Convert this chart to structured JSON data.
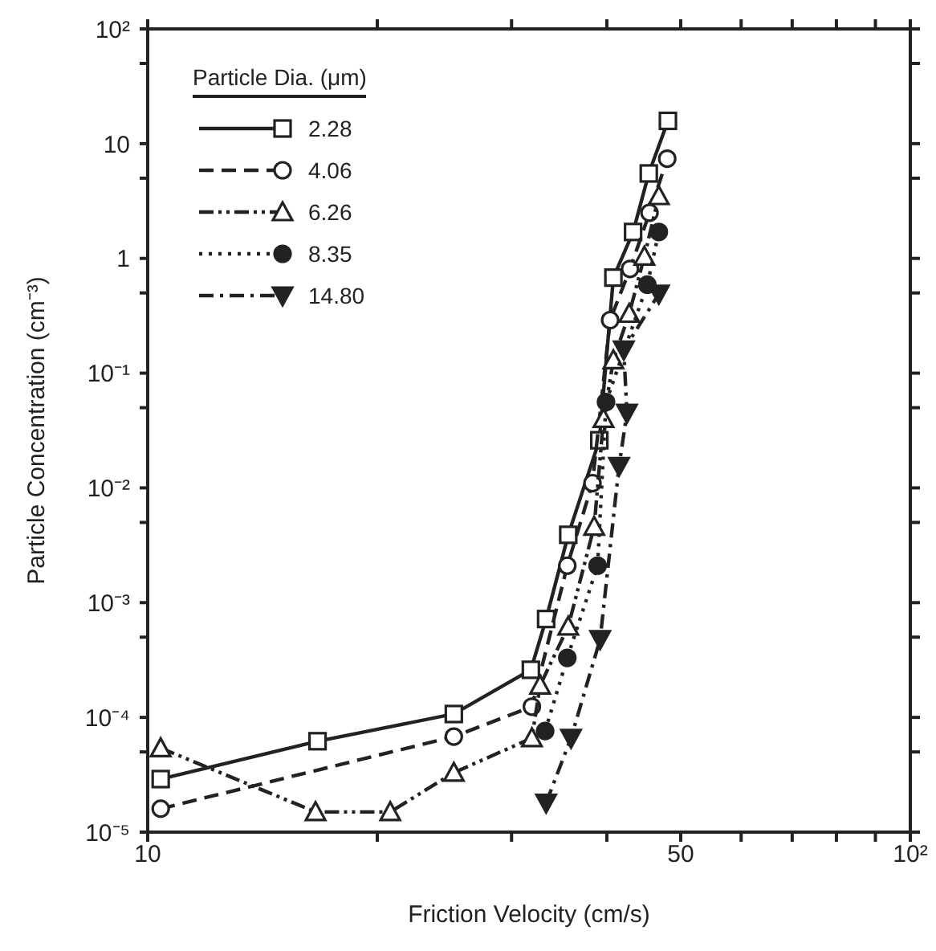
{
  "chart_data": {
    "type": "line",
    "xlabel": "Friction Velocity (cm/s)",
    "ylabel": "Particle Concentration (cm⁻³)",
    "legend_title": "Particle Dia. (μm)",
    "log": "xy",
    "legend": "top left",
    "xlim": [
      10,
      100
    ],
    "xticks": [
      10,
      {
        "value": 20,
        "label": null
      },
      {
        "value": 30,
        "label": null
      },
      {
        "value": 40,
        "label": null
      },
      50,
      {
        "value": 60,
        "label": null
      },
      {
        "value": 70,
        "label": null
      },
      {
        "value": 80,
        "label": null
      },
      {
        "value": 90,
        "label": null
      },
      {
        "value": 100,
        "label": "10²"
      }
    ],
    "ylim": [
      1e-05,
      100
    ],
    "yticks": [
      {
        "value": 1e-05,
        "label": "10⁻⁵"
      },
      {
        "value": 5e-05,
        "label": null
      },
      {
        "value": 0.0001,
        "label": "10⁻⁴"
      },
      {
        "value": 0.0005,
        "label": null
      },
      {
        "value": 0.001,
        "label": "10⁻³"
      },
      {
        "value": 0.005,
        "label": null
      },
      {
        "value": 0.01,
        "label": "10⁻²"
      },
      {
        "value": 0.05,
        "label": null
      },
      {
        "value": 0.1,
        "label": "10⁻¹"
      },
      {
        "value": 0.5,
        "label": null
      },
      1,
      {
        "value": 5,
        "label": null
      },
      10,
      {
        "value": 50,
        "label": null
      },
      {
        "value": 100,
        "label": "10²"
      }
    ],
    "series": [
      {
        "name": "2.28",
        "color": "#222222",
        "marker": "square",
        "line_style": "solid",
        "x": [
          10.4,
          16.7,
          25.2,
          31.8,
          33.3,
          35.6,
          39.1,
          40.2,
          40.8,
          43.3,
          45.4,
          48.1
        ],
        "values": [
          2.9e-05,
          6.2e-05,
          0.000107,
          0.00026,
          0.00072,
          0.0039,
          0.026,
          null,
          0.68,
          1.7,
          5.5,
          15.8
        ]
      },
      {
        "name": "4.06",
        "color": "#222222",
        "marker": "circle",
        "line_style": "dashed",
        "x": [
          10.4,
          16.7,
          25.2,
          31.9,
          35.5,
          38.3,
          40.4,
          42.9,
          45.5,
          48.0
        ],
        "values": [
          1.6e-05,
          null,
          6.8e-05,
          0.000124,
          0.0021,
          0.011,
          0.29,
          0.81,
          2.5,
          7.4
        ]
      },
      {
        "name": "6.26",
        "color": "#222222",
        "marker": "triangle",
        "line_style": "dashdotdot",
        "x": [
          10.4,
          16.6,
          20.8,
          25.2,
          31.9,
          32.7,
          35.6,
          38.5,
          39.6,
          40.8,
          42.8,
          44.8,
          46.8
        ],
        "values": [
          5.4e-05,
          1.5e-05,
          1.5e-05,
          3.3e-05,
          6.6e-05,
          0.00019,
          0.00062,
          0.0046,
          0.04,
          0.13,
          0.33,
          1.04,
          3.5
        ]
      },
      {
        "name": "8.35",
        "color": "#222222",
        "marker": "circle-filled",
        "line_style": "dotted",
        "x": [
          33.2,
          35.5,
          38.9,
          39.9,
          41.7,
          45.2,
          46.8
        ],
        "values": [
          7.6e-05,
          0.00033,
          0.0021,
          0.056,
          null,
          0.59,
          1.7
        ]
      },
      {
        "name": "14.80",
        "color": "#222222",
        "marker": "triangle-down-filled",
        "line_style": "dashdot",
        "x": [
          33.3,
          35.9,
          39.2,
          41.5,
          42.5,
          42.1,
          46.8
        ],
        "values": [
          1.8e-05,
          6.6e-05,
          0.00048,
          0.0155,
          0.045,
          0.16,
          0.49
        ]
      }
    ]
  }
}
